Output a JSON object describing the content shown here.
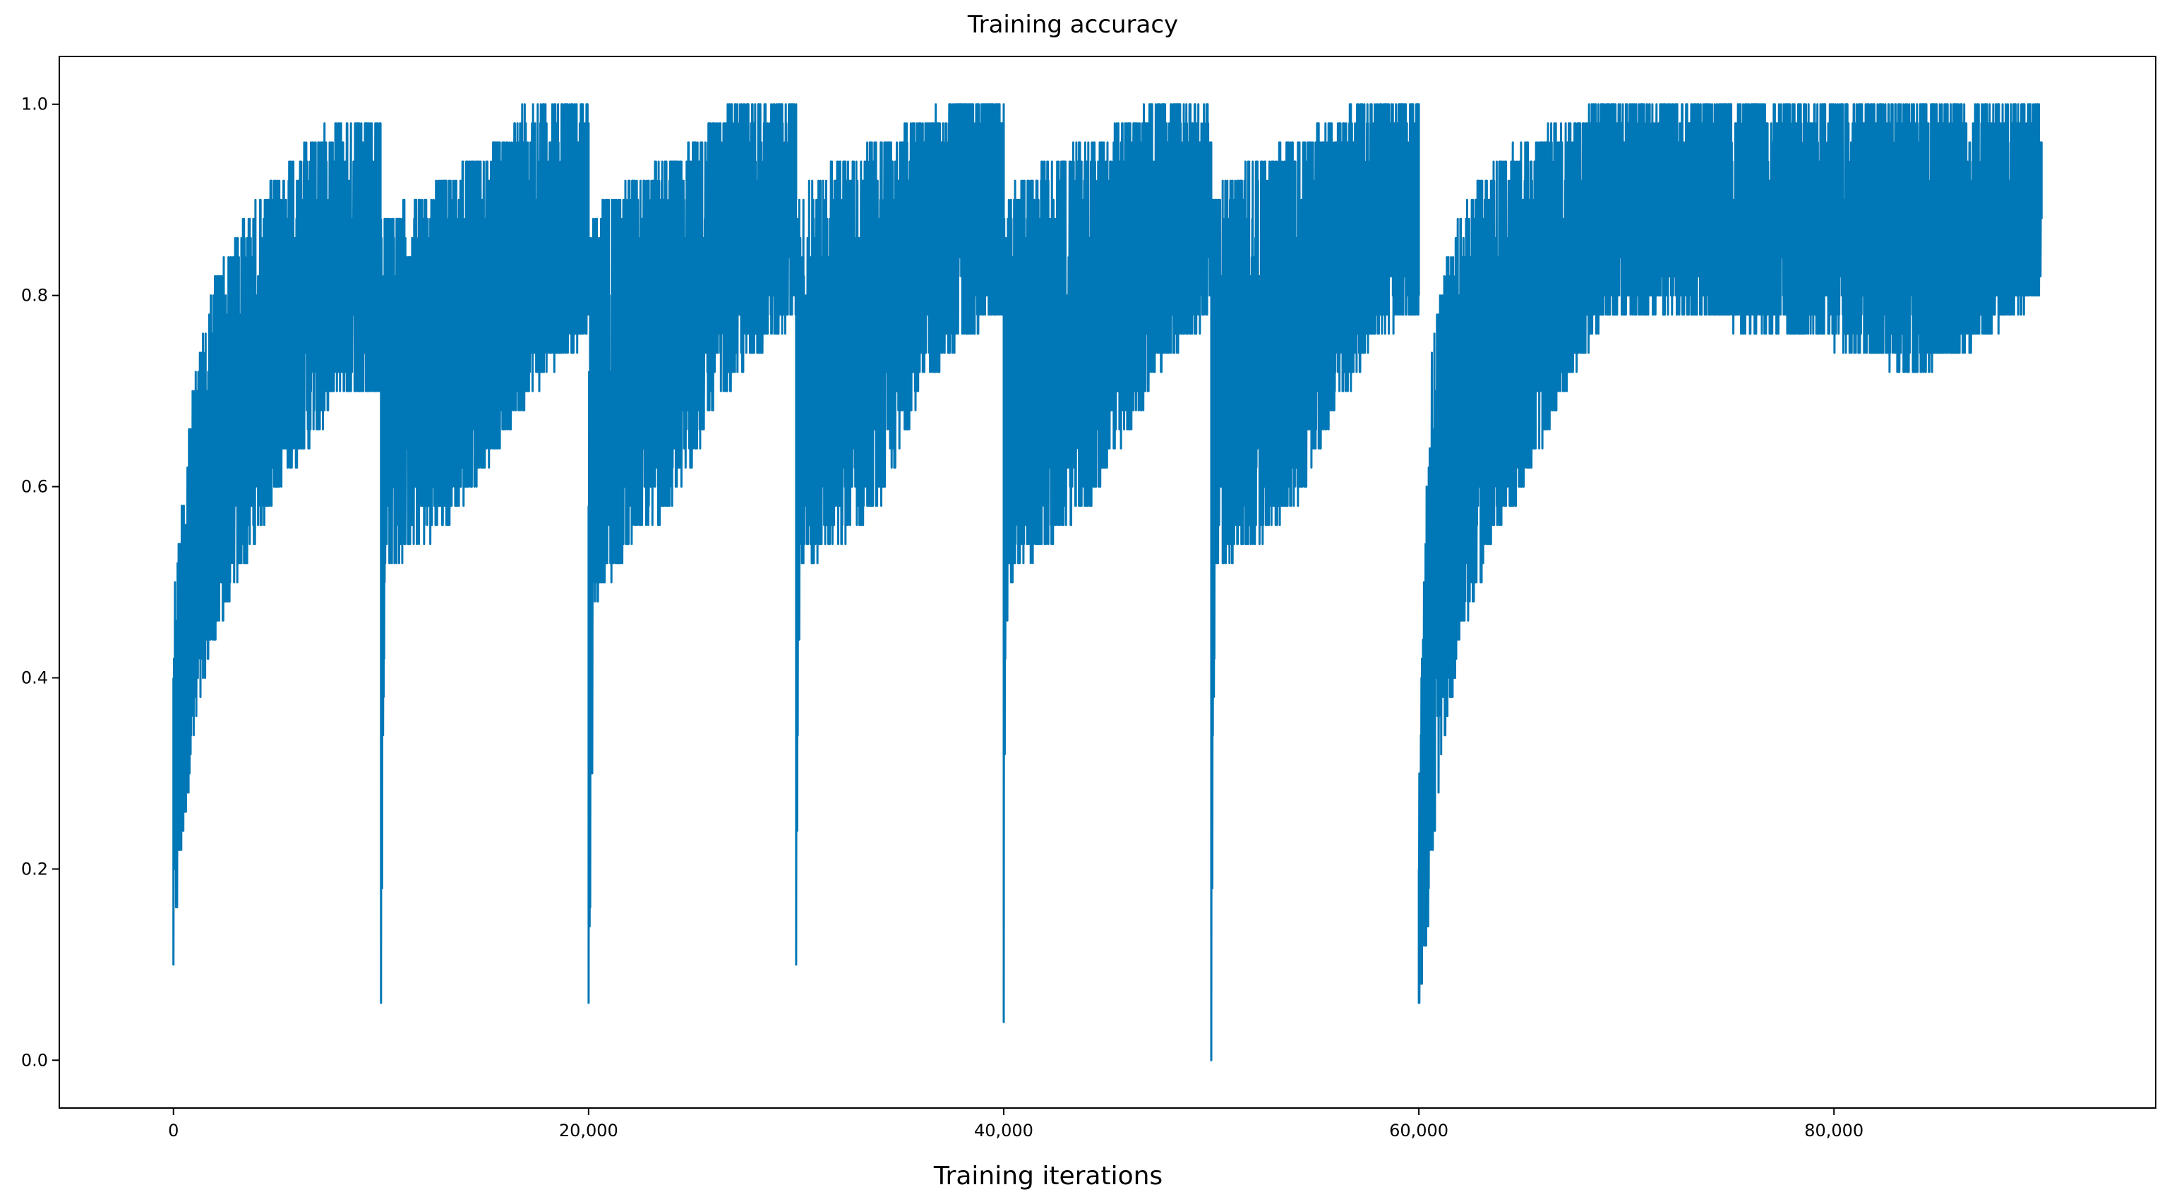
{
  "chart_data": {
    "type": "line",
    "title": "Training accuracy",
    "xlabel": "Training iterations",
    "ylabel": "",
    "xlim": [
      -5500,
      95500
    ],
    "ylim": [
      -0.05,
      1.05
    ],
    "grid": false,
    "legend": "none",
    "line_color": "#0077b6",
    "x_ticks": [
      0,
      20000,
      40000,
      60000,
      80000
    ],
    "x_tick_labels": [
      "0",
      "20,000",
      "40,000",
      "60,000",
      "80,000"
    ],
    "y_ticks": [
      0.0,
      0.2,
      0.4,
      0.6,
      0.8,
      1.0
    ],
    "y_tick_labels": [
      "0.0",
      "0.2",
      "0.4",
      "0.6",
      "0.8",
      "1.0"
    ],
    "series": [
      {
        "segments": [
          {
            "start": 0,
            "end": 10000,
            "upper_envelope": [
              [
                0,
                0.48
              ],
              [
                800,
                0.68
              ],
              [
                2000,
                0.82
              ],
              [
                3500,
                0.88
              ],
              [
                5000,
                0.92
              ],
              [
                6500,
                0.96
              ],
              [
                8000,
                0.98
              ],
              [
                10000,
                0.98
              ]
            ],
            "lower_envelope": [
              [
                0,
                0.1
              ],
              [
                300,
                0.2
              ],
              [
                800,
                0.3
              ],
              [
                1500,
                0.4
              ],
              [
                3000,
                0.5
              ],
              [
                5000,
                0.6
              ],
              [
                7000,
                0.66
              ],
              [
                8000,
                0.7
              ],
              [
                10000,
                0.7
              ]
            ],
            "min_value": 0.1
          },
          {
            "start": 10000,
            "end": 20000,
            "upper_envelope": [
              [
                10000,
                0.88
              ],
              [
                12000,
                0.9
              ],
              [
                14000,
                0.94
              ],
              [
                16000,
                0.96
              ],
              [
                17000,
                1.0
              ],
              [
                20000,
                1.0
              ]
            ],
            "lower_envelope": [
              [
                10000,
                0.06
              ],
              [
                10200,
                0.52
              ],
              [
                12000,
                0.54
              ],
              [
                14000,
                0.58
              ],
              [
                16000,
                0.66
              ],
              [
                18000,
                0.72
              ],
              [
                20000,
                0.76
              ]
            ],
            "min_value": 0.06
          },
          {
            "start": 20000,
            "end": 30000,
            "upper_envelope": [
              [
                20000,
                0.88
              ],
              [
                22000,
                0.92
              ],
              [
                24000,
                0.94
              ],
              [
                26000,
                0.98
              ],
              [
                27000,
                1.0
              ],
              [
                30000,
                1.0
              ]
            ],
            "lower_envelope": [
              [
                20000,
                0.06
              ],
              [
                20300,
                0.48
              ],
              [
                22000,
                0.54
              ],
              [
                24000,
                0.58
              ],
              [
                26000,
                0.68
              ],
              [
                28000,
                0.74
              ],
              [
                30000,
                0.78
              ]
            ],
            "min_value": 0.06
          },
          {
            "start": 30000,
            "end": 40000,
            "upper_envelope": [
              [
                30000,
                0.9
              ],
              [
                32000,
                0.94
              ],
              [
                34000,
                0.96
              ],
              [
                36000,
                0.98
              ],
              [
                37000,
                1.0
              ],
              [
                40000,
                1.0
              ]
            ],
            "lower_envelope": [
              [
                30000,
                0.1
              ],
              [
                30200,
                0.52
              ],
              [
                32000,
                0.54
              ],
              [
                34000,
                0.58
              ],
              [
                36000,
                0.7
              ],
              [
                38000,
                0.76
              ],
              [
                40000,
                0.78
              ]
            ],
            "min_value": 0.1
          },
          {
            "start": 40000,
            "end": 50000,
            "upper_envelope": [
              [
                40000,
                0.9
              ],
              [
                42000,
                0.94
              ],
              [
                44000,
                0.96
              ],
              [
                46000,
                0.98
              ],
              [
                47000,
                1.0
              ],
              [
                50000,
                1.0
              ]
            ],
            "lower_envelope": [
              [
                40000,
                0.04
              ],
              [
                40200,
                0.5
              ],
              [
                42000,
                0.54
              ],
              [
                44000,
                0.58
              ],
              [
                46000,
                0.66
              ],
              [
                48000,
                0.74
              ],
              [
                50000,
                0.78
              ]
            ],
            "min_value": 0.04
          },
          {
            "start": 50000,
            "end": 60000,
            "upper_envelope": [
              [
                50000,
                0.9
              ],
              [
                52000,
                0.94
              ],
              [
                54000,
                0.96
              ],
              [
                56000,
                0.98
              ],
              [
                57000,
                1.0
              ],
              [
                60000,
                1.0
              ]
            ],
            "lower_envelope": [
              [
                50000,
                0.0
              ],
              [
                50200,
                0.52
              ],
              [
                52000,
                0.54
              ],
              [
                54000,
                0.58
              ],
              [
                56000,
                0.68
              ],
              [
                58000,
                0.76
              ],
              [
                60000,
                0.78
              ]
            ],
            "min_value": 0.0
          },
          {
            "start": 60000,
            "end": 90000,
            "upper_envelope": [
              [
                60000,
                0.3
              ],
              [
                60500,
                0.72
              ],
              [
                61500,
                0.86
              ],
              [
                63000,
                0.92
              ],
              [
                65000,
                0.96
              ],
              [
                67000,
                0.98
              ],
              [
                69000,
                1.0
              ],
              [
                90000,
                1.0
              ]
            ],
            "lower_envelope": [
              [
                60000,
                0.06
              ],
              [
                60500,
                0.14
              ],
              [
                61000,
                0.3
              ],
              [
                62000,
                0.44
              ],
              [
                63500,
                0.54
              ],
              [
                65000,
                0.6
              ],
              [
                67000,
                0.7
              ],
              [
                69000,
                0.78
              ],
              [
                72000,
                0.78
              ],
              [
                78000,
                0.76
              ],
              [
                84000,
                0.72
              ],
              [
                86000,
                0.74
              ],
              [
                90000,
                0.8
              ]
            ],
            "min_value": 0.06
          }
        ]
      }
    ]
  }
}
